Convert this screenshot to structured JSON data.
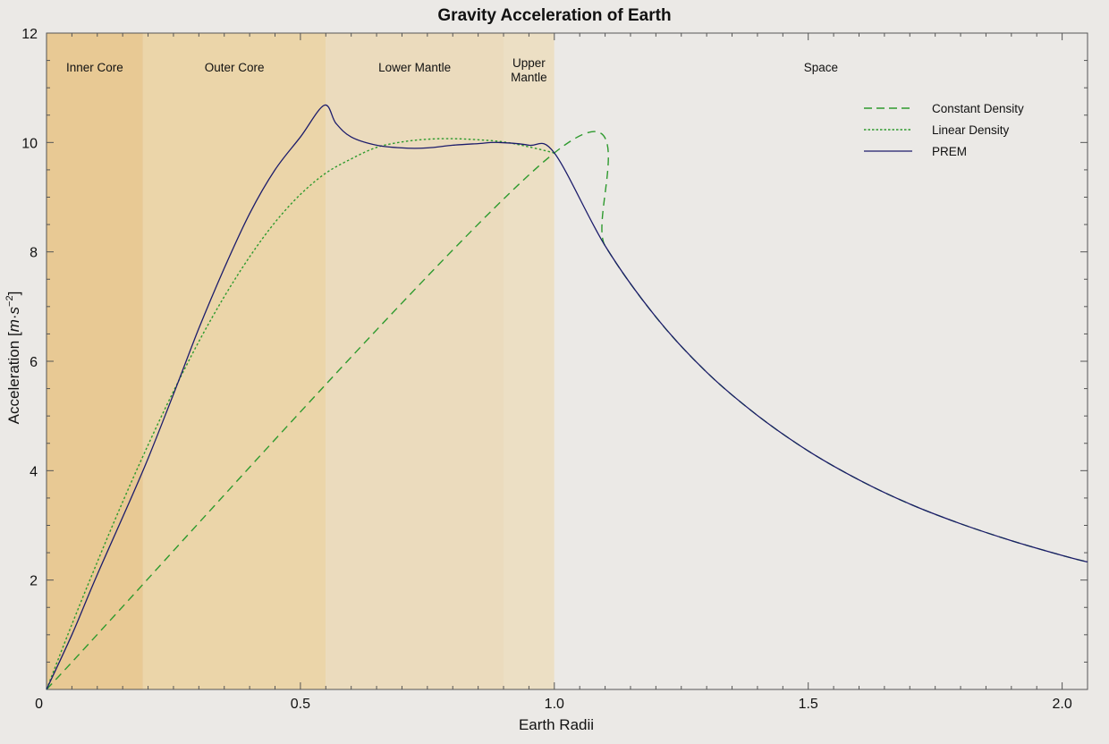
{
  "chart_data": {
    "type": "line",
    "title": "Gravity Acceleration of Earth",
    "xlabel": "Earth Radii",
    "ylabel": {
      "base": "Acceleration",
      "unit_open": "[",
      "unit_m": "m",
      "unit_dot": "·",
      "unit_s": "s",
      "unit_exp": "−2",
      "unit_close": "]"
    },
    "xlim": [
      0,
      2.05
    ],
    "ylim": [
      0,
      12
    ],
    "x_ticks": [
      {
        "value": 0,
        "label": "0"
      },
      {
        "value": 0.5,
        "label": "0.5"
      },
      {
        "value": 1.0,
        "label": "1.0"
      },
      {
        "value": 1.5,
        "label": "1.5"
      },
      {
        "value": 2.0,
        "label": "2.0"
      }
    ],
    "y_ticks": [
      {
        "value": 2,
        "label": "2"
      },
      {
        "value": 4,
        "label": "4"
      },
      {
        "value": 6,
        "label": "6"
      },
      {
        "value": 8,
        "label": "8"
      },
      {
        "value": 10,
        "label": "10"
      },
      {
        "value": 12,
        "label": "12"
      }
    ],
    "grid": false,
    "legend_position": "top-right",
    "regions": [
      {
        "label": [
          "Inner Core"
        ],
        "x0": 0,
        "x1": 0.19,
        "color": "#e8c994"
      },
      {
        "label": [
          "Outer Core"
        ],
        "x0": 0.19,
        "x1": 0.55,
        "color": "#ebd5a9"
      },
      {
        "label": [
          "Lower Mantle"
        ],
        "x0": 0.55,
        "x1": 0.9,
        "color": "#ebdbbd"
      },
      {
        "label": [
          "Upper",
          "Mantle"
        ],
        "x0": 0.9,
        "x1": 1.0,
        "color": "#ecdfc4"
      },
      {
        "label": [
          "Space"
        ],
        "x0": 1.0,
        "x1": 2.05,
        "color": "#ebe9e6"
      }
    ],
    "series": [
      {
        "name": "Constant Density",
        "style": "dashed",
        "color": "#2e9a2e",
        "x": [
          0,
          1.0,
          1.1,
          1.2,
          1.3,
          1.4,
          1.5,
          1.6,
          1.7,
          1.8,
          1.9,
          2.0,
          2.05
        ],
        "y": [
          0,
          9.81,
          8.11,
          6.81,
          5.8,
          5.01,
          4.36,
          3.83,
          3.39,
          3.03,
          2.72,
          2.45,
          2.33
        ]
      },
      {
        "name": "Linear Density",
        "style": "dotted",
        "color": "#2e9a2e",
        "x": [
          0,
          0.05,
          0.1,
          0.15,
          0.2,
          0.25,
          0.3,
          0.35,
          0.4,
          0.45,
          0.5,
          0.55,
          0.6,
          0.65,
          0.7,
          0.75,
          0.8,
          0.85,
          0.9,
          0.95,
          1.0
        ],
        "y": [
          0,
          1.19,
          2.33,
          3.43,
          4.47,
          5.45,
          6.36,
          7.18,
          7.91,
          8.54,
          9.05,
          9.44,
          9.7,
          9.91,
          10.01,
          10.06,
          10.07,
          10.05,
          10.01,
          9.92,
          9.81
        ]
      },
      {
        "name": "PREM",
        "style": "solid",
        "color": "#1c1c6b",
        "x": [
          0,
          0.05,
          0.1,
          0.19,
          0.25,
          0.3,
          0.35,
          0.4,
          0.45,
          0.5,
          0.547,
          0.57,
          0.6,
          0.65,
          0.7,
          0.75,
          0.8,
          0.85,
          0.89,
          0.95,
          1.0,
          1.1,
          1.2,
          1.3,
          1.4,
          1.5,
          1.6,
          1.7,
          1.8,
          1.9,
          2.0,
          2.05
        ],
        "y": [
          0,
          1.0,
          2.1,
          4.0,
          5.4,
          6.6,
          7.7,
          8.7,
          9.5,
          10.1,
          10.68,
          10.35,
          10.1,
          9.95,
          9.9,
          9.9,
          9.95,
          9.98,
          10.0,
          9.95,
          9.81,
          8.11,
          6.81,
          5.8,
          5.01,
          4.36,
          3.83,
          3.39,
          3.03,
          2.72,
          2.45,
          2.33
        ]
      }
    ]
  }
}
